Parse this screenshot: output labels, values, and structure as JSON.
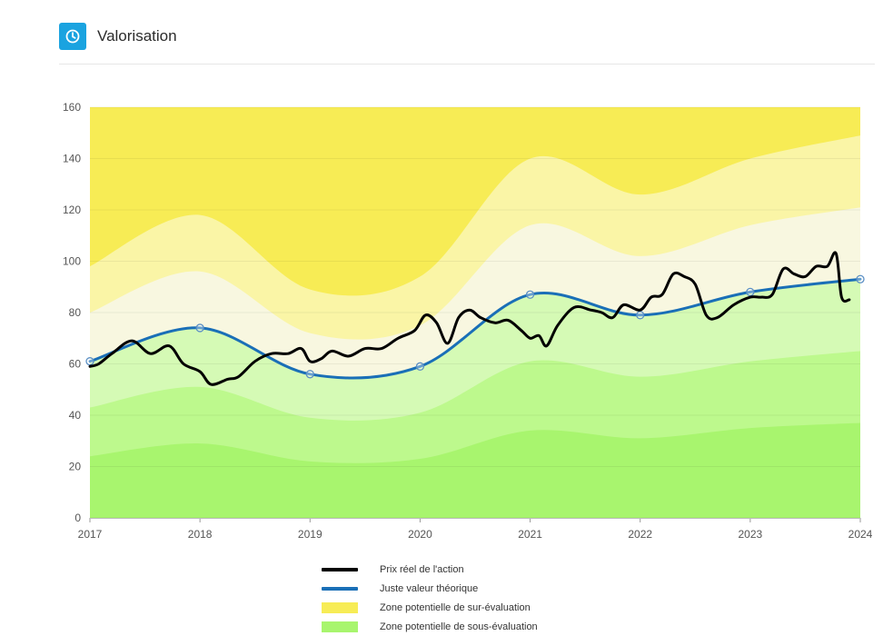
{
  "header": {
    "title": "Valorisation",
    "icon": "clock-icon",
    "icon_color": "#1aa3e0"
  },
  "legend": {
    "items": [
      {
        "label": "Prix réel de l'action",
        "color": "#000000",
        "kind": "line"
      },
      {
        "label": "Juste valeur théorique",
        "color": "#1a6fb7",
        "kind": "line"
      },
      {
        "label": "Zone potentielle de sur-évaluation",
        "color": "#f7ec55",
        "kind": "box"
      },
      {
        "label": "Zone potentielle de sous-évaluation",
        "color": "#a8f56e",
        "kind": "box"
      }
    ]
  },
  "chart_data": {
    "type": "area",
    "title": "",
    "xlabel": "",
    "ylabel": "",
    "xlim": [
      2017,
      2024
    ],
    "ylim": [
      0,
      160
    ],
    "x_ticks": [
      "2017",
      "2018",
      "2019",
      "2020",
      "2021",
      "2022",
      "2023",
      "2024"
    ],
    "y_ticks": [
      "0",
      "20",
      "40",
      "60",
      "80",
      "100",
      "120",
      "140",
      "160"
    ],
    "grid": true,
    "legend_position": "bottom",
    "bands": {
      "x": [
        2017,
        2018,
        2019,
        2020,
        2021,
        2022,
        2023,
        2024
      ],
      "boundaries": [
        {
          "name": "g1",
          "values": [
            24,
            29,
            22,
            23,
            34,
            31,
            35,
            37
          ]
        },
        {
          "name": "g2",
          "values": [
            43,
            51,
            39,
            41,
            61,
            55,
            61,
            65
          ]
        },
        {
          "name": "fair_value",
          "values": [
            61,
            74,
            56,
            59,
            87,
            79,
            88,
            93
          ]
        },
        {
          "name": "y1",
          "values": [
            80,
            96,
            72,
            75,
            114,
            102,
            114,
            121
          ]
        },
        {
          "name": "y2",
          "values": [
            98,
            118,
            89,
            94,
            140,
            126,
            140,
            149
          ]
        }
      ],
      "colors": {
        "green_dark": "#a8f56e",
        "green_mid": "#bdf98d",
        "green_light": "#d5fab5",
        "cream": "#f8f7e0",
        "yellow_light": "#faf5a6",
        "yellow_dark": "#f7ec55"
      }
    },
    "series": [
      {
        "name": "Juste valeur théorique",
        "color": "#1a6fb7",
        "x": [
          2017,
          2018,
          2019,
          2020,
          2021,
          2022,
          2023,
          2024
        ],
        "values": [
          61,
          74,
          56,
          59,
          87,
          79,
          88,
          93
        ]
      },
      {
        "name": "Prix réel de l'action",
        "color": "#000000",
        "x": [
          2017.0,
          2017.08,
          2017.2,
          2017.38,
          2017.55,
          2017.72,
          2017.85,
          2018.0,
          2018.1,
          2018.25,
          2018.35,
          2018.5,
          2018.65,
          2018.8,
          2018.92,
          2019.0,
          2019.1,
          2019.2,
          2019.35,
          2019.5,
          2019.65,
          2019.8,
          2019.95,
          2020.05,
          2020.15,
          2020.25,
          2020.35,
          2020.45,
          2020.55,
          2020.68,
          2020.8,
          2020.92,
          2021.0,
          2021.08,
          2021.15,
          2021.25,
          2021.4,
          2021.55,
          2021.65,
          2021.75,
          2021.85,
          2022.0,
          2022.1,
          2022.2,
          2022.3,
          2022.4,
          2022.5,
          2022.6,
          2022.7,
          2022.85,
          2023.0,
          2023.1,
          2023.2,
          2023.3,
          2023.4,
          2023.5,
          2023.6,
          2023.7,
          2023.78,
          2023.83,
          2023.9
        ],
        "values": [
          59,
          60,
          64,
          69,
          64,
          67,
          60,
          57,
          52,
          54,
          55,
          61,
          64,
          64,
          66,
          61,
          62,
          65,
          63,
          66,
          66,
          70,
          73,
          79,
          76,
          68,
          78,
          81,
          78,
          76,
          77,
          73,
          70,
          71,
          67,
          75,
          82,
          81,
          80,
          78,
          83,
          81,
          86,
          87,
          95,
          94,
          91,
          79,
          78,
          83,
          86,
          86,
          87,
          97,
          95,
          94,
          98,
          98,
          103,
          86,
          85
        ]
      }
    ]
  }
}
